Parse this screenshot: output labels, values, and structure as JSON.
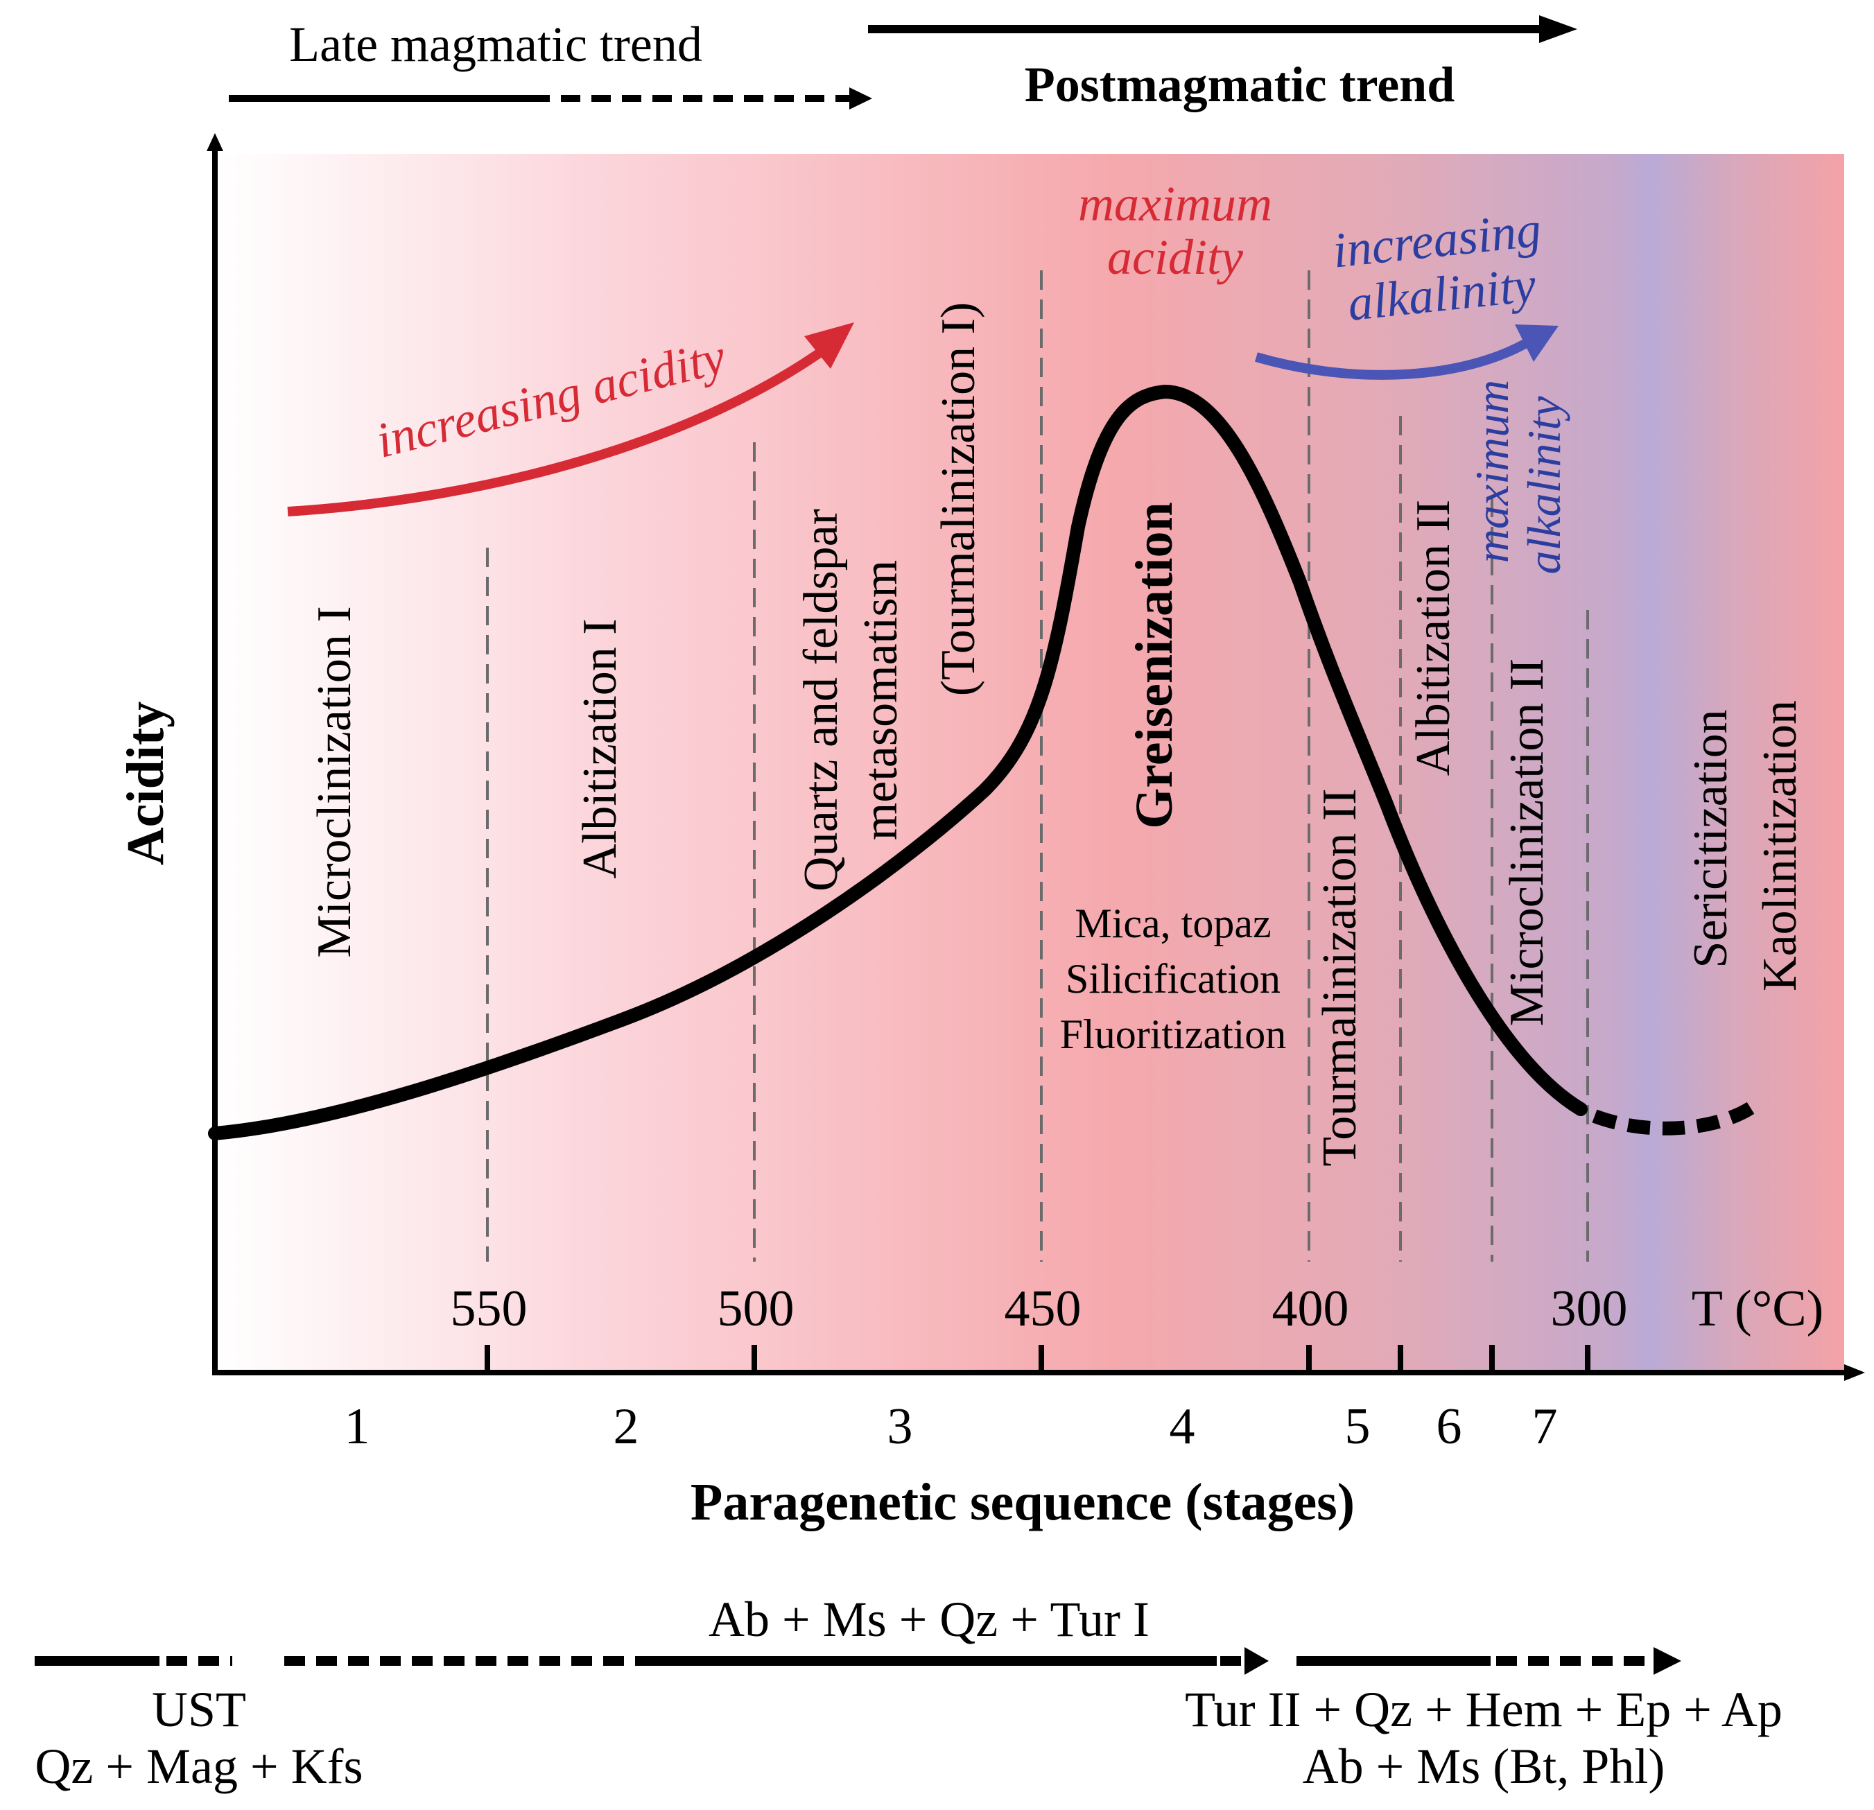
{
  "trends": {
    "late_magmatic": "Late magmatic trend",
    "postmagmatic": "Postmagmatic trend"
  },
  "axes": {
    "y_label": "Acidity",
    "x_label": "Paragenetic sequence (stages)",
    "temperature_label": "T (°C)"
  },
  "temperature_ticks": [
    "550",
    "500",
    "450",
    "400",
    "300"
  ],
  "stage_numbers": [
    "1",
    "2",
    "3",
    "4",
    "5",
    "6",
    "7"
  ],
  "annotations": {
    "increasing_acidity": "increasing acidity",
    "maximum_acidity_1": "maximum",
    "maximum_acidity_2": "acidity",
    "increasing_alkalinity_1": "increasing",
    "increasing_alkalinity_2": "alkalinity",
    "maximum_alkalinity_1": "maximum",
    "maximum_alkalinity_2": "alkalinity"
  },
  "stages": {
    "microclinization_1": "Microclinization I",
    "albitization_1": "Albitization I",
    "quartz_feldspar_1": "Quartz and feldspar",
    "quartz_feldspar_2": "metasomatism",
    "tourmalinization_1": "(Tourmalinization I)",
    "greisenization": "Greisenization",
    "greisen_detail_1": "Mica, topaz",
    "greisen_detail_2": "Silicification",
    "greisen_detail_3": "Fluoritization",
    "tourmalinization_2": "Tourmalinization II",
    "albitization_2": "Albitization II",
    "microclinization_2": "Microclinization II",
    "sericitization": "Sericitization",
    "kaolinitization": "Kaolinitization"
  },
  "minerals": {
    "middle": "Ab + Ms + Qz + Tur I",
    "ust": "UST",
    "ust_minerals": "Qz + Mag + Kfs",
    "late_1": "Tur II + Qz + Hem + Ep + Ap",
    "late_2": "Ab + Ms (Bt, Phl)"
  },
  "colors": {
    "acidity_red": "#d62a35",
    "alkalinity_blue": "#2b3ea0",
    "curve": "#000000",
    "divider": "#6b6b6b"
  }
}
